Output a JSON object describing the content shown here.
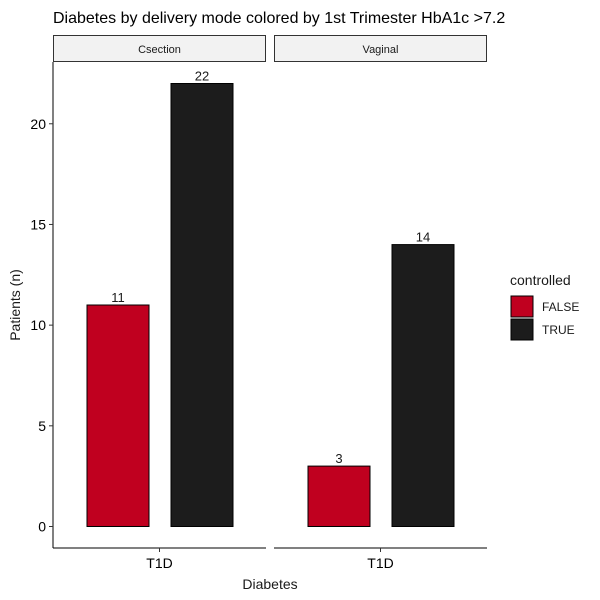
{
  "chart_data": {
    "type": "bar",
    "title": "Diabetes by delivery mode colored by 1st Trimester HbA1c >7.2",
    "xlabel": "Diabetes",
    "ylabel": "Patients (n)",
    "ylim": [
      0,
      23
    ],
    "yticks": [
      0,
      5,
      10,
      15,
      20
    ],
    "grid": false,
    "legend": {
      "title": "controlled",
      "placement": "right",
      "entries": [
        {
          "label": "FALSE",
          "color": "#C0001F"
        },
        {
          "label": "TRUE",
          "color": "#1C1C1C"
        }
      ]
    },
    "facets": [
      {
        "name": "Csection",
        "categories": [
          "T1D"
        ],
        "series": [
          {
            "name": "FALSE",
            "values": [
              11
            ]
          },
          {
            "name": "TRUE",
            "values": [
              22
            ]
          }
        ]
      },
      {
        "name": "Vaginal",
        "categories": [
          "T1D"
        ],
        "series": [
          {
            "name": "FALSE",
            "values": [
              3
            ]
          },
          {
            "name": "TRUE",
            "values": [
              14
            ]
          }
        ]
      }
    ]
  }
}
